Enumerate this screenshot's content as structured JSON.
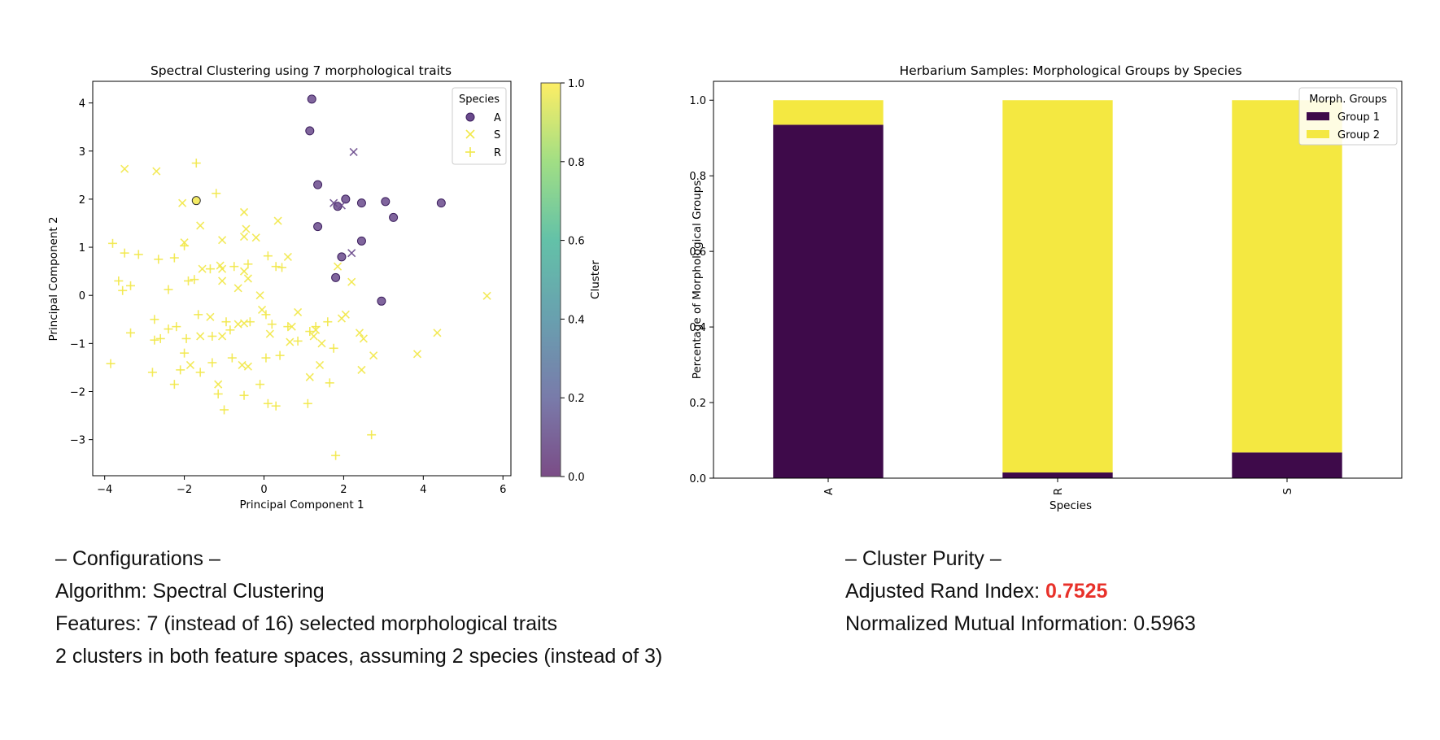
{
  "chart_data": [
    {
      "type": "scatter",
      "title": "Spectral Clustering using 7 morphological traits",
      "xlabel": "Principal Component 1",
      "ylabel": "Principal Component 2",
      "xlim": [
        -4.3,
        6.2
      ],
      "ylim": [
        -3.75,
        4.45
      ],
      "xticks": [
        -4,
        -2,
        0,
        2,
        4,
        6
      ],
      "yticks": [
        -3,
        -2,
        -1,
        0,
        1,
        2,
        3,
        4
      ],
      "colorbar": {
        "label": "Cluster",
        "ticks": [
          0.0,
          0.2,
          0.4,
          0.6,
          0.8,
          1.0
        ],
        "range": [
          0,
          1
        ]
      },
      "legend": {
        "title": "Species",
        "placement": "top-right",
        "entries": [
          {
            "label": "A",
            "marker": "circle"
          },
          {
            "label": "S",
            "marker": "x"
          },
          {
            "label": "R",
            "marker": "plus"
          }
        ]
      },
      "colors": {
        "cluster0": "#6a4a8c",
        "cluster1": "#f2e84a",
        "cluster0_dark": "#3c1f5e"
      },
      "series": [
        {
          "name": "A",
          "marker": "circle",
          "points": [
            [
              1.2,
              4.08,
              0
            ],
            [
              1.15,
              3.42,
              0
            ],
            [
              1.35,
              2.3,
              0
            ],
            [
              2.05,
              2.0,
              0
            ],
            [
              1.85,
              1.85,
              0
            ],
            [
              2.45,
              1.92,
              0
            ],
            [
              3.05,
              1.95,
              0
            ],
            [
              4.45,
              1.92,
              0
            ],
            [
              3.25,
              1.62,
              0
            ],
            [
              1.35,
              1.43,
              0
            ],
            [
              2.45,
              1.13,
              0
            ],
            [
              1.95,
              0.8,
              0
            ],
            [
              1.8,
              0.37,
              0
            ],
            [
              2.95,
              -0.12,
              0
            ],
            [
              -1.7,
              1.97,
              1
            ]
          ]
        },
        {
          "name": "S",
          "marker": "x",
          "points": [
            [
              2.25,
              2.98,
              0
            ],
            [
              1.75,
              1.92,
              0
            ],
            [
              1.95,
              1.87,
              0
            ],
            [
              2.2,
              0.88,
              0
            ],
            [
              -3.5,
              2.63,
              1
            ],
            [
              -2.7,
              2.58,
              1
            ],
            [
              -2.05,
              1.92,
              1
            ],
            [
              -2.0,
              1.1,
              1
            ],
            [
              -1.6,
              1.45,
              1
            ],
            [
              -1.05,
              1.15,
              1
            ],
            [
              -0.5,
              1.73,
              1
            ],
            [
              -0.45,
              1.38,
              1
            ],
            [
              -0.5,
              1.22,
              1
            ],
            [
              -0.2,
              1.2,
              1
            ],
            [
              0.35,
              1.55,
              1
            ],
            [
              0.6,
              0.8,
              1
            ],
            [
              -1.1,
              0.62,
              1
            ],
            [
              -1.05,
              0.55,
              1
            ],
            [
              -0.65,
              0.15,
              1
            ],
            [
              -0.5,
              0.5,
              1
            ],
            [
              -0.4,
              0.35,
              1
            ],
            [
              -1.55,
              0.55,
              1
            ],
            [
              -1.05,
              0.3,
              1
            ],
            [
              -0.1,
              0.0,
              1
            ],
            [
              -0.05,
              -0.3,
              1
            ],
            [
              -1.35,
              -0.45,
              1
            ],
            [
              -1.6,
              -0.85,
              1
            ],
            [
              -0.65,
              -0.6,
              1
            ],
            [
              -0.5,
              -0.58,
              1
            ],
            [
              0.7,
              -0.65,
              1
            ],
            [
              0.85,
              -0.35,
              1
            ],
            [
              1.3,
              -0.72,
              1
            ],
            [
              1.25,
              -0.85,
              1
            ],
            [
              1.45,
              -1.0,
              1
            ],
            [
              1.95,
              -0.48,
              1
            ],
            [
              2.05,
              -0.4,
              1
            ],
            [
              1.85,
              0.6,
              1
            ],
            [
              2.2,
              0.28,
              1
            ],
            [
              2.4,
              -0.78,
              1
            ],
            [
              2.5,
              -0.9,
              1
            ],
            [
              2.75,
              -1.25,
              1
            ],
            [
              3.85,
              -1.22,
              1
            ],
            [
              4.35,
              -0.78,
              1
            ],
            [
              5.6,
              -0.01,
              1
            ],
            [
              2.45,
              -1.55,
              1
            ],
            [
              1.4,
              -1.45,
              1
            ],
            [
              1.15,
              -1.7,
              1
            ],
            [
              0.65,
              -0.97,
              1
            ],
            [
              0.15,
              -0.8,
              1
            ],
            [
              -0.55,
              -1.45,
              1
            ],
            [
              -0.4,
              -1.48,
              1
            ],
            [
              -1.05,
              -0.85,
              1
            ],
            [
              -1.85,
              -1.45,
              1
            ],
            [
              -1.15,
              -1.85,
              1
            ]
          ]
        },
        {
          "name": "R",
          "marker": "plus",
          "points": [
            [
              -1.7,
              2.75,
              1
            ],
            [
              -1.2,
              2.12,
              1
            ],
            [
              -2.0,
              1.03,
              1
            ],
            [
              -3.8,
              1.08,
              1
            ],
            [
              -3.5,
              0.88,
              1
            ],
            [
              -3.15,
              0.85,
              1
            ],
            [
              -3.65,
              0.3,
              1
            ],
            [
              -3.55,
              0.1,
              1
            ],
            [
              -3.35,
              0.2,
              1
            ],
            [
              -2.65,
              0.75,
              1
            ],
            [
              -2.25,
              0.78,
              1
            ],
            [
              -2.4,
              0.12,
              1
            ],
            [
              -1.9,
              0.3,
              1
            ],
            [
              -1.75,
              0.33,
              1
            ],
            [
              -1.35,
              0.55,
              1
            ],
            [
              -0.75,
              0.6,
              1
            ],
            [
              -0.4,
              0.65,
              1
            ],
            [
              0.1,
              0.82,
              1
            ],
            [
              0.3,
              0.6,
              1
            ],
            [
              0.45,
              0.58,
              1
            ],
            [
              -3.35,
              -0.78,
              1
            ],
            [
              -2.75,
              -0.93,
              1
            ],
            [
              -2.6,
              -0.9,
              1
            ],
            [
              -2.75,
              -0.5,
              1
            ],
            [
              -2.4,
              -0.7,
              1
            ],
            [
              -2.2,
              -0.65,
              1
            ],
            [
              -1.95,
              -0.9,
              1
            ],
            [
              -1.65,
              -0.4,
              1
            ],
            [
              -1.3,
              -0.85,
              1
            ],
            [
              -0.95,
              -0.55,
              1
            ],
            [
              -0.85,
              -0.72,
              1
            ],
            [
              -0.35,
              -0.55,
              1
            ],
            [
              0.05,
              -0.4,
              1
            ],
            [
              0.2,
              -0.6,
              1
            ],
            [
              0.6,
              -0.65,
              1
            ],
            [
              0.85,
              -0.95,
              1
            ],
            [
              1.15,
              -0.75,
              1
            ],
            [
              1.3,
              -0.65,
              1
            ],
            [
              1.6,
              -0.55,
              1
            ],
            [
              1.75,
              -1.1,
              1
            ],
            [
              0.4,
              -1.25,
              1
            ],
            [
              0.05,
              -1.3,
              1
            ],
            [
              -0.8,
              -1.3,
              1
            ],
            [
              -1.3,
              -1.4,
              1
            ],
            [
              -1.6,
              -1.6,
              1
            ],
            [
              -2.1,
              -1.55,
              1
            ],
            [
              -2.25,
              -1.85,
              1
            ],
            [
              -2.0,
              -1.2,
              1
            ],
            [
              -2.8,
              -1.6,
              1
            ],
            [
              -3.85,
              -1.42,
              1
            ],
            [
              -1.15,
              -2.05,
              1
            ],
            [
              -0.5,
              -2.08,
              1
            ],
            [
              -1.0,
              -2.38,
              1
            ],
            [
              0.1,
              -2.25,
              1
            ],
            [
              0.3,
              -2.3,
              1
            ],
            [
              -0.1,
              -1.85,
              1
            ],
            [
              1.1,
              -2.25,
              1
            ],
            [
              1.65,
              -1.82,
              1
            ],
            [
              1.8,
              -3.33,
              1
            ],
            [
              2.7,
              -2.9,
              1
            ]
          ]
        }
      ]
    },
    {
      "type": "bar",
      "stacked": true,
      "title": "Herbarium Samples: Morphological Groups by Species",
      "xlabel": "Species",
      "ylabel": "Percentage of Morphological Groups",
      "categories": [
        "A",
        "R",
        "S"
      ],
      "ylim": [
        0,
        1.05
      ],
      "yticks": [
        "0.0",
        "0.2",
        "0.4",
        "0.6",
        "0.8",
        "1.0"
      ],
      "legend": {
        "title": "Morph. Groups",
        "placement": "top-right"
      },
      "series": [
        {
          "name": "Group 1",
          "color": "#3e0a4a",
          "values": [
            0.935,
            0.015,
            0.068
          ]
        },
        {
          "name": "Group 2",
          "color": "#f4e841",
          "values": [
            0.065,
            0.985,
            0.932
          ]
        }
      ]
    }
  ],
  "info": {
    "config_heading": "– Configurations –",
    "algorithm": "Algorithm: Spectral Clustering",
    "features": "Features: 7 (instead of 16) selected morphological traits",
    "clusters": "2 clusters in both feature spaces, assuming 2 species (instead of 3)",
    "purity_heading": "– Cluster Purity –",
    "ari_label": "Adjusted Rand Index: ",
    "ari_value": "0.7525",
    "nmi": "Normalized Mutual Information: 0.5963"
  }
}
